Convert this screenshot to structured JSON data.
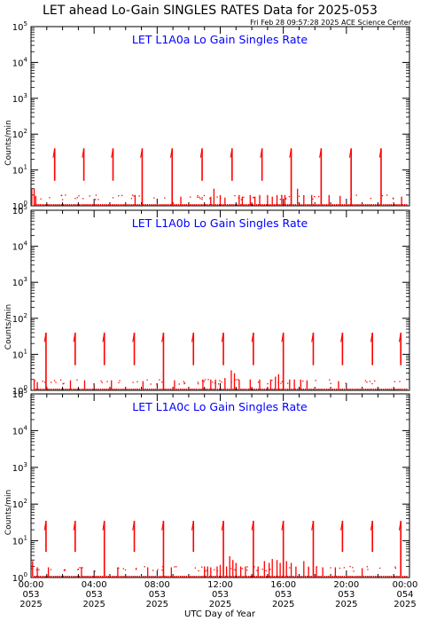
{
  "header": {
    "title": "LET ahead Lo-Gain SINGLES RATES Data for 2025-053",
    "timestamp": "Fri Feb 28 09:57:28 2025 ACE Science Center"
  },
  "colors": {
    "data": "#ff0000",
    "panel_title": "#0000ff",
    "axis": "#000000",
    "background": "#ffffff"
  },
  "chart_data": [
    {
      "type": "scatter",
      "title": "LET L1A0a Lo Gain Singles Rate",
      "ylabel": "Counts/min",
      "xlabel": "",
      "yscale": "log",
      "ylim": [
        1,
        100000
      ],
      "xlim": [
        0,
        24
      ],
      "x_units": "hour of day 053 (UTC)",
      "grid": false,
      "spikes": [
        {
          "x": 1.5,
          "ymin": 5,
          "ymax": 40
        },
        {
          "x": 3.35,
          "ymin": 5,
          "ymax": 40
        },
        {
          "x": 5.2,
          "ymin": 5,
          "ymax": 40
        },
        {
          "x": 7.05,
          "ymin": 1,
          "ymax": 40
        },
        {
          "x": 8.95,
          "ymin": 1,
          "ymax": 40
        },
        {
          "x": 10.85,
          "ymin": 5,
          "ymax": 40
        },
        {
          "x": 12.75,
          "ymin": 5,
          "ymax": 40
        },
        {
          "x": 14.65,
          "ymin": 5,
          "ymax": 40
        },
        {
          "x": 16.5,
          "ymin": 1,
          "ymax": 40
        },
        {
          "x": 18.4,
          "ymin": 1,
          "ymax": 40
        },
        {
          "x": 20.3,
          "ymin": 1,
          "ymax": 40
        },
        {
          "x": 22.2,
          "ymin": 1,
          "ymax": 40
        }
      ],
      "bars": [
        [
          0.05,
          3
        ],
        [
          0.2,
          3
        ],
        [
          0.3,
          1.9
        ],
        [
          6.6,
          2
        ],
        [
          9.5,
          1.8
        ],
        [
          11.4,
          1.8
        ],
        [
          11.6,
          3
        ],
        [
          12.0,
          2
        ],
        [
          12.3,
          1.7
        ],
        [
          13.2,
          2
        ],
        [
          13.4,
          1.8
        ],
        [
          13.9,
          2
        ],
        [
          14.2,
          1.8
        ],
        [
          14.5,
          2
        ],
        [
          15.0,
          2
        ],
        [
          15.3,
          1.8
        ],
        [
          15.6,
          2
        ],
        [
          15.9,
          2
        ],
        [
          16.1,
          2
        ],
        [
          16.9,
          3
        ],
        [
          17.3,
          2
        ],
        [
          17.8,
          2
        ],
        [
          18.9,
          2
        ],
        [
          19.6,
          1.9
        ],
        [
          23.5,
          1.8
        ]
      ],
      "baseline": 1,
      "scatter_level": 1.8
    },
    {
      "type": "scatter",
      "title": "LET L1A0b Lo Gain Singles Rate",
      "ylabel": "Counts/min",
      "xlabel": "",
      "yscale": "log",
      "ylim": [
        1,
        100000
      ],
      "xlim": [
        0,
        24
      ],
      "x_units": "hour of day 053 (UTC)",
      "grid": false,
      "spikes": [
        {
          "x": 0.95,
          "ymin": 1,
          "ymax": 40
        },
        {
          "x": 2.8,
          "ymin": 5,
          "ymax": 40
        },
        {
          "x": 4.65,
          "ymin": 5,
          "ymax": 40
        },
        {
          "x": 6.55,
          "ymin": 5,
          "ymax": 40
        },
        {
          "x": 8.4,
          "ymin": 1,
          "ymax": 40
        },
        {
          "x": 10.3,
          "ymin": 5,
          "ymax": 40
        },
        {
          "x": 12.2,
          "ymin": 5,
          "ymax": 40
        },
        {
          "x": 14.1,
          "ymin": 5,
          "ymax": 40
        },
        {
          "x": 16.0,
          "ymin": 1,
          "ymax": 40
        },
        {
          "x": 17.9,
          "ymin": 5,
          "ymax": 40
        },
        {
          "x": 19.75,
          "ymin": 5,
          "ymax": 40
        },
        {
          "x": 21.65,
          "ymin": 5,
          "ymax": 40
        },
        {
          "x": 23.45,
          "ymin": 5,
          "ymax": 40
        }
      ],
      "bars": [
        [
          0.2,
          1.9
        ],
        [
          0.4,
          1.7
        ],
        [
          2.5,
          1.9
        ],
        [
          3.4,
          1.9
        ],
        [
          5.1,
          1.9
        ],
        [
          7.1,
          1.8
        ],
        [
          9.1,
          1.9
        ],
        [
          10.9,
          2
        ],
        [
          11.4,
          2
        ],
        [
          11.7,
          2
        ],
        [
          12.3,
          2.2
        ],
        [
          12.7,
          3.6
        ],
        [
          12.9,
          3
        ],
        [
          13.2,
          2
        ],
        [
          13.9,
          2
        ],
        [
          14.5,
          2
        ],
        [
          15.2,
          2
        ],
        [
          15.5,
          2.4
        ],
        [
          15.7,
          2.8
        ],
        [
          16.4,
          2
        ],
        [
          16.7,
          2
        ],
        [
          17.1,
          2
        ],
        [
          17.5,
          1.9
        ],
        [
          19.5,
          1.8
        ]
      ],
      "baseline": 1,
      "scatter_level": 1.8
    },
    {
      "type": "scatter",
      "title": "LET L1A0c Lo Gain Singles Rate",
      "ylabel": "Counts/min",
      "xlabel": "UTC Day of Year",
      "yscale": "log",
      "ylim": [
        1,
        100000
      ],
      "xlim": [
        0,
        24
      ],
      "x_units": "hour of day 053 (UTC)",
      "grid": false,
      "spikes": [
        {
          "x": 0.95,
          "ymin": 5,
          "ymax": 35
        },
        {
          "x": 2.8,
          "ymin": 5,
          "ymax": 35
        },
        {
          "x": 4.65,
          "ymin": 1,
          "ymax": 35
        },
        {
          "x": 6.55,
          "ymin": 5,
          "ymax": 35
        },
        {
          "x": 8.4,
          "ymin": 1,
          "ymax": 35
        },
        {
          "x": 10.3,
          "ymin": 5,
          "ymax": 35
        },
        {
          "x": 12.2,
          "ymin": 1,
          "ymax": 35
        },
        {
          "x": 14.1,
          "ymin": 1,
          "ymax": 35
        },
        {
          "x": 16.0,
          "ymin": 1,
          "ymax": 35
        },
        {
          "x": 17.9,
          "ymin": 1,
          "ymax": 35
        },
        {
          "x": 19.75,
          "ymin": 5,
          "ymax": 35
        },
        {
          "x": 21.65,
          "ymin": 5,
          "ymax": 35
        },
        {
          "x": 23.45,
          "ymin": 1,
          "ymax": 35
        }
      ],
      "bars": [
        [
          0.1,
          2.8
        ],
        [
          0.4,
          1.9
        ],
        [
          1.1,
          1.9
        ],
        [
          3.2,
          1.9
        ],
        [
          5.5,
          1.9
        ],
        [
          7.4,
          1.9
        ],
        [
          8.9,
          1.9
        ],
        [
          11.0,
          2
        ],
        [
          11.2,
          2
        ],
        [
          11.4,
          1.9
        ],
        [
          11.8,
          2
        ],
        [
          12.0,
          2.2
        ],
        [
          12.4,
          2
        ],
        [
          12.6,
          3.8
        ],
        [
          12.8,
          3
        ],
        [
          13.0,
          2.5
        ],
        [
          13.3,
          2
        ],
        [
          13.6,
          2
        ],
        [
          14.4,
          2
        ],
        [
          14.8,
          2.8
        ],
        [
          15.1,
          2.5
        ],
        [
          15.3,
          3.2
        ],
        [
          15.6,
          3
        ],
        [
          15.8,
          2.5
        ],
        [
          16.2,
          2.8
        ],
        [
          16.5,
          2.5
        ],
        [
          16.8,
          2
        ],
        [
          17.3,
          2.8
        ],
        [
          17.6,
          2
        ],
        [
          18.1,
          2
        ],
        [
          18.5,
          1.9
        ],
        [
          19.3,
          1.9
        ],
        [
          21.0,
          1.8
        ]
      ],
      "baseline": 1,
      "scatter_level": 1.8
    }
  ],
  "yticks": [
    {
      "value": 1,
      "base": "10",
      "exp": "0"
    },
    {
      "value": 10,
      "base": "10",
      "exp": "1"
    },
    {
      "value": 100,
      "base": "10",
      "exp": "2"
    },
    {
      "value": 1000,
      "base": "10",
      "exp": "3"
    },
    {
      "value": 10000,
      "base": "10",
      "exp": "4"
    },
    {
      "value": 100000,
      "base": "10",
      "exp": "5"
    }
  ],
  "xticks": [
    {
      "value": 0,
      "lines": [
        "00:00",
        "053",
        "2025"
      ]
    },
    {
      "value": 4,
      "lines": [
        "04:00",
        "053",
        "2025"
      ]
    },
    {
      "value": 8,
      "lines": [
        "08:00",
        "053",
        "2025"
      ]
    },
    {
      "value": 12,
      "lines": [
        "12:00",
        "053",
        "2025"
      ]
    },
    {
      "value": 16,
      "lines": [
        "16:00",
        "053",
        "2025"
      ]
    },
    {
      "value": 20,
      "lines": [
        "20:00",
        "053",
        "2025"
      ]
    },
    {
      "value": 24,
      "lines": [
        "00:00",
        "054",
        "2025"
      ]
    }
  ]
}
